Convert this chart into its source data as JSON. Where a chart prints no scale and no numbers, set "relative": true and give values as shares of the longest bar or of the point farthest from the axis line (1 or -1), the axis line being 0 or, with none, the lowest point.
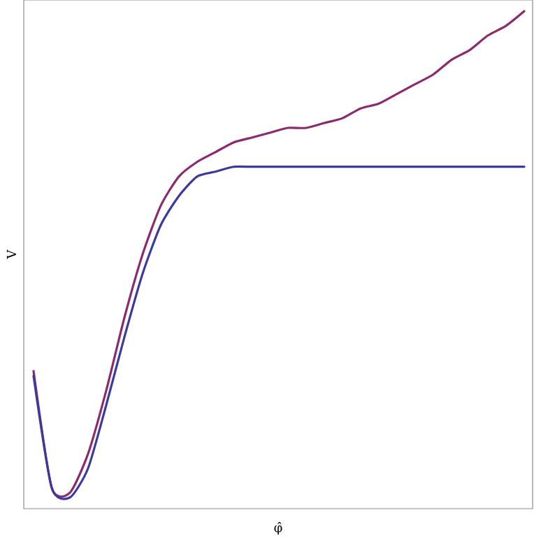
{
  "chart_data": {
    "type": "line",
    "xlabel": "φ̂",
    "ylabel": "V",
    "relative": true,
    "categories": [
      null,
      null,
      null,
      null,
      null,
      null,
      null,
      null,
      null,
      null,
      null,
      null,
      null,
      null,
      null,
      null,
      null,
      null,
      null,
      null,
      null,
      null,
      null,
      null,
      null,
      null,
      null,
      null
    ],
    "series": [
      {
        "color": "#8b2a6e",
        "values": [
          0.26,
          0.02,
          0.01,
          0.09,
          0.22,
          0.37,
          0.5,
          0.6,
          0.66,
          0.69,
          0.71,
          0.73,
          0.74,
          0.75,
          0.76,
          0.76,
          0.77,
          0.78,
          0.8,
          0.81,
          0.83,
          0.85,
          0.87,
          0.9,
          0.92,
          0.95,
          0.97,
          1
        ]
      },
      {
        "color": "#3c3a9e",
        "values": [
          0.25,
          0.02,
          0,
          0.06,
          0.19,
          0.33,
          0.46,
          0.56,
          0.62,
          0.66,
          0.67,
          0.68,
          0.68,
          0.68,
          0.68,
          0.68,
          0.68,
          0.68,
          0.68,
          0.68,
          0.68,
          0.68,
          0.68,
          0.68,
          0.68,
          0.68,
          0.68,
          0.68
        ]
      }
    ],
    "marker": "none",
    "line_style": "solid"
  }
}
